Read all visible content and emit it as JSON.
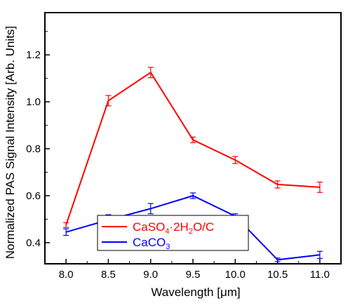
{
  "chart_data": {
    "type": "line",
    "title": "",
    "xlabel": "Wavelength [μm]",
    "ylabel": "Normalized PAS Signal Intensity [Arb. Units]",
    "x": [
      8.0,
      8.5,
      9.0,
      9.5,
      10.0,
      10.5,
      11.0
    ],
    "x_tick_labels": [
      "8.0",
      "8.5",
      "9.0",
      "9.5",
      "10.0",
      "10.5",
      "11.0"
    ],
    "y_tick_labels": [
      "0.4",
      "0.6",
      "0.8",
      "1.0",
      "1.2"
    ],
    "xlim": [
      7.75,
      11.25
    ],
    "ylim": [
      0.31,
      1.38
    ],
    "grid": false,
    "legend_position": "bottom-left",
    "series": [
      {
        "name": "CaSO4·2H2O/C",
        "color": "#ff0000",
        "values": [
          0.475,
          1.005,
          1.125,
          0.838,
          0.752,
          0.648,
          0.636
        ],
        "errors": [
          0.01,
          0.022,
          0.022,
          0.012,
          0.015,
          0.015,
          0.022
        ]
      },
      {
        "name": "CaCO3",
        "color": "#0000ff",
        "values": [
          0.445,
          0.497,
          0.545,
          0.6,
          0.513,
          0.327,
          0.348
        ],
        "errors": [
          0.014,
          0.022,
          0.022,
          0.012,
          0.01,
          0.008,
          0.015
        ]
      }
    ],
    "legend_labels": {
      "series0": {
        "main": "CaSO",
        "sub1": "4",
        "mid": "·2H",
        "sub2": "2",
        "end": "O/C"
      },
      "series1": {
        "main": "CaCO",
        "sub1": "3"
      }
    }
  }
}
